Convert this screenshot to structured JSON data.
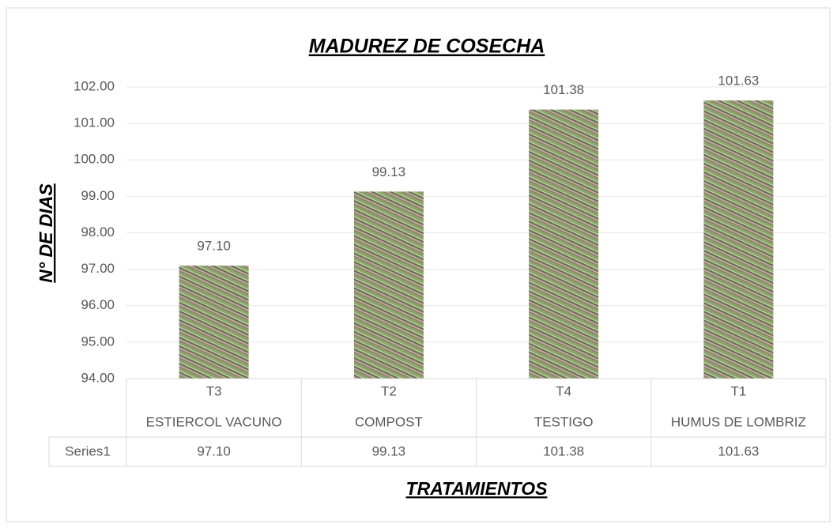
{
  "chart_data": {
    "type": "bar",
    "title": "MADUREZ DE COSECHA",
    "x_label": "TRATAMIENTOS",
    "y_label": "N° DE DIAS",
    "categories": [
      "T3",
      "T2",
      "T4",
      "T1"
    ],
    "category_names": [
      "ESTIERCOL VACUNO",
      "COMPOST",
      "TESTIGO",
      "HUMUS DE LOMBRIZ"
    ],
    "series": [
      {
        "name": "Series1",
        "color": "#7fa05a",
        "values": [
          97.1,
          99.13,
          101.38,
          101.63
        ],
        "value_labels": [
          "97.10",
          "99.13",
          "101.38",
          "101.63"
        ]
      }
    ],
    "ylim": [
      94,
      102
    ],
    "yticks": [
      {
        "value": 94,
        "label": "94.00"
      },
      {
        "value": 95,
        "label": "95.00"
      },
      {
        "value": 96,
        "label": "96.00"
      },
      {
        "value": 97,
        "label": "97.00"
      },
      {
        "value": 98,
        "label": "98.00"
      },
      {
        "value": 99,
        "label": "99.00"
      },
      {
        "value": 100,
        "label": "100.00"
      },
      {
        "value": 101,
        "label": "101.00"
      },
      {
        "value": 102,
        "label": "102.00"
      }
    ],
    "grid": true,
    "data_table": true
  }
}
